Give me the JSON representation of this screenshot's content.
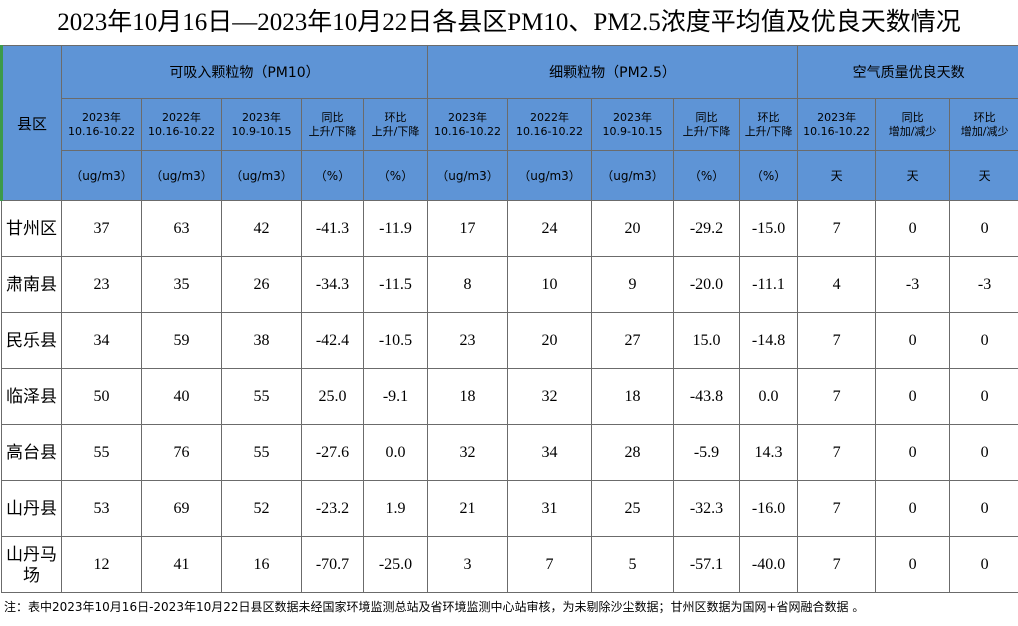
{
  "title": "2023年10月16日—2023年10月22日各县区PM10、PM2.5浓度平均值及优良天数情况",
  "table": {
    "corner": "县区",
    "groups": [
      {
        "label": "可吸入颗粒物（PM10）",
        "columns": [
          {
            "head": [
              "2023年",
              "10.16-10.22"
            ],
            "unit": "（ug/m3）"
          },
          {
            "head": [
              "2022年",
              "10.16-10.22"
            ],
            "unit": "（ug/m3）"
          },
          {
            "head": [
              "2023年",
              "10.9-10.15"
            ],
            "unit": "（ug/m3）"
          },
          {
            "head": [
              "同比",
              "上升/下降"
            ],
            "unit": "（%）"
          },
          {
            "head": [
              "环比",
              "上升/下降"
            ],
            "unit": "（%）"
          }
        ]
      },
      {
        "label": "细颗粒物（PM2.5）",
        "columns": [
          {
            "head": [
              "2023年",
              "10.16-10.22"
            ],
            "unit": "（ug/m3）"
          },
          {
            "head": [
              "2022年",
              "10.16-10.22"
            ],
            "unit": "（ug/m3）"
          },
          {
            "head": [
              "2023年",
              "10.9-10.15"
            ],
            "unit": "（ug/m3）"
          },
          {
            "head": [
              "同比",
              "上升/下降"
            ],
            "unit": "（%）"
          },
          {
            "head": [
              "环比",
              "上升/下降"
            ],
            "unit": "（%）"
          }
        ]
      },
      {
        "label": "空气质量优良天数",
        "columns": [
          {
            "head": [
              "2023年",
              "10.16-10.22"
            ],
            "unit": "天"
          },
          {
            "head": [
              "同比",
              "增加/减少"
            ],
            "unit": "天"
          },
          {
            "head": [
              "环比",
              "增加/减少"
            ],
            "unit": "天"
          }
        ]
      }
    ],
    "rows": [
      [
        "甘州区",
        "37",
        "63",
        "42",
        "-41.3",
        "-11.9",
        "17",
        "24",
        "20",
        "-29.2",
        "-15.0",
        "7",
        "0",
        "0"
      ],
      [
        "肃南县",
        "23",
        "35",
        "26",
        "-34.3",
        "-11.5",
        "8",
        "10",
        "9",
        "-20.0",
        "-11.1",
        "4",
        "-3",
        "-3"
      ],
      [
        "民乐县",
        "34",
        "59",
        "38",
        "-42.4",
        "-10.5",
        "23",
        "20",
        "27",
        "15.0",
        "-14.8",
        "7",
        "0",
        "0"
      ],
      [
        "临泽县",
        "50",
        "40",
        "55",
        "25.0",
        "-9.1",
        "18",
        "32",
        "18",
        "-43.8",
        "0.0",
        "7",
        "0",
        "0"
      ],
      [
        "高台县",
        "55",
        "76",
        "55",
        "-27.6",
        "0.0",
        "32",
        "34",
        "28",
        "-5.9",
        "14.3",
        "7",
        "0",
        "0"
      ],
      [
        "山丹县",
        "53",
        "69",
        "52",
        "-23.2",
        "1.9",
        "21",
        "31",
        "25",
        "-32.3",
        "-16.0",
        "7",
        "0",
        "0"
      ],
      [
        "山丹马场",
        "12",
        "41",
        "16",
        "-70.7",
        "-25.0",
        "3",
        "7",
        "5",
        "-57.1",
        "-40.0",
        "7",
        "0",
        "0"
      ]
    ]
  },
  "note": "注：表中2023年10月16日-2023年10月22日县区数据未经国家环境监测总站及省环境监测中心站审核，为未剔除沙尘数据；甘州区数据为国网+省网融合数据 。"
}
